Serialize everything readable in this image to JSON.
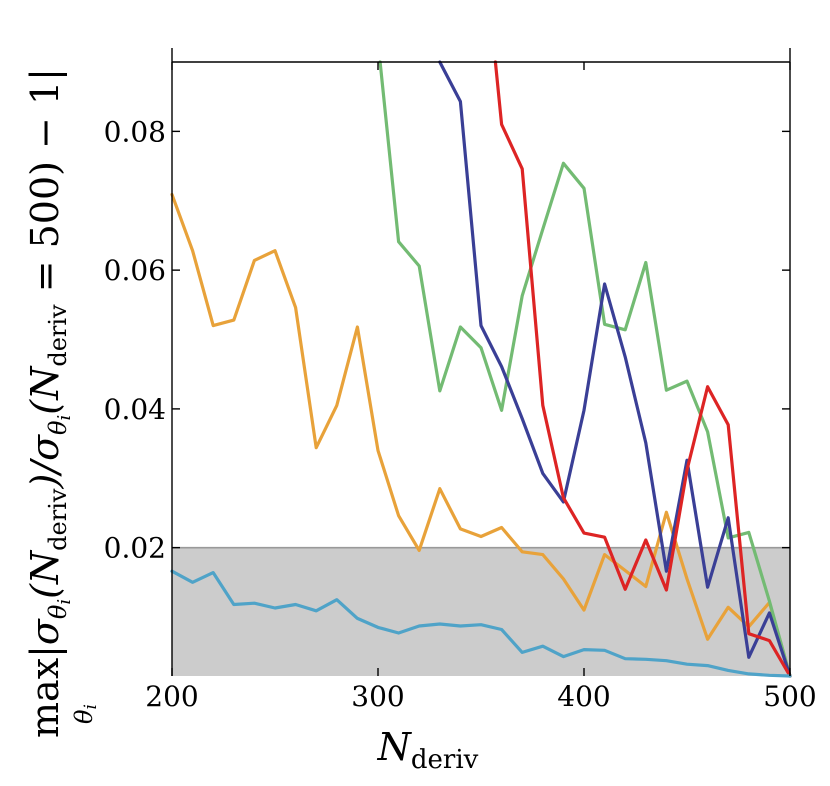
{
  "chart_data": {
    "type": "line",
    "title": "",
    "xlabel": "N",
    "xlabel_sub": "deriv",
    "ylabel": "max |σ_θi(N_deriv)/σ_θi(N_deriv = 500) − 1|",
    "ylabel_parts": {
      "max": "max",
      "under": "θ",
      "under_sub": "i",
      "body_a": "|σ",
      "theta": "θ",
      "theta_sub": "i",
      "paren_open": "(N",
      "deriv": "deriv",
      "mid": ")/σ",
      "tail": " = 500) − 1|"
    },
    "xlim": [
      200,
      500
    ],
    "ylim": [
      0.0015,
      0.09
    ],
    "xticks": [
      200,
      300,
      400,
      500
    ],
    "xtick_labels": [
      "200",
      "300",
      "400",
      "500"
    ],
    "yticks": [
      0.02,
      0.04,
      0.06,
      0.08
    ],
    "ytick_labels": [
      "0.02",
      "0.04",
      "0.06",
      "0.08"
    ],
    "shaded_region": {
      "y_from": 0.0015,
      "y_to": 0.02,
      "color": "#cccccc"
    },
    "threshold_line": {
      "y": 0.02,
      "color": "#999999"
    },
    "series": [
      {
        "name": "orange",
        "color": "#E8A23A",
        "x": [
          200,
          210,
          220,
          230,
          240,
          250,
          260,
          270,
          280,
          290,
          300,
          310,
          320,
          330,
          340,
          350,
          360,
          370,
          380,
          390,
          400,
          410,
          420,
          430,
          440,
          450,
          460,
          470,
          480,
          490,
          500
        ],
        "y": [
          0.0709,
          0.0628,
          0.052,
          0.0528,
          0.0614,
          0.0628,
          0.0546,
          0.0344,
          0.0405,
          0.0518,
          0.034,
          0.0246,
          0.0196,
          0.0285,
          0.0227,
          0.0216,
          0.0229,
          0.0194,
          0.019,
          0.0155,
          0.011,
          0.019,
          0.0167,
          0.0144,
          0.0251,
          0.0155,
          0.0068,
          0.0114,
          0.0086,
          0.0121,
          0.0015
        ]
      },
      {
        "name": "green",
        "color": "#73BB73",
        "x": [
          301,
          310,
          320,
          330,
          340,
          350,
          360,
          370,
          380,
          390,
          400,
          410,
          420,
          430,
          440,
          450,
          460,
          470,
          480,
          490,
          500
        ],
        "y": [
          0.09,
          0.0641,
          0.0606,
          0.0426,
          0.0518,
          0.0488,
          0.0398,
          0.0563,
          0.0659,
          0.0754,
          0.0718,
          0.0522,
          0.0514,
          0.0611,
          0.0427,
          0.044,
          0.0367,
          0.0214,
          0.0222,
          0.0123,
          0.0015
        ]
      },
      {
        "name": "blue",
        "color": "#3A3F96",
        "x": [
          330,
          340,
          350,
          360,
          370,
          380,
          390,
          400,
          410,
          420,
          430,
          440,
          450,
          460,
          470,
          480,
          490,
          500
        ],
        "y": [
          0.09,
          0.0843,
          0.052,
          0.0461,
          0.0386,
          0.0307,
          0.0266,
          0.0398,
          0.058,
          0.0475,
          0.0351,
          0.0166,
          0.0326,
          0.0143,
          0.0243,
          0.0042,
          0.0106,
          0.0015
        ]
      },
      {
        "name": "red",
        "color": "#DD2424",
        "x": [
          357,
          360,
          370,
          380,
          390,
          400,
          410,
          420,
          430,
          440,
          450,
          460,
          470,
          480,
          490,
          500
        ],
        "y": [
          0.09,
          0.081,
          0.0746,
          0.0405,
          0.0272,
          0.0221,
          0.0215,
          0.014,
          0.0211,
          0.0139,
          0.0312,
          0.0432,
          0.0377,
          0.0076,
          0.0066,
          0.0015
        ]
      },
      {
        "name": "teal",
        "color": "#4FA3C8",
        "x": [
          200,
          210,
          220,
          230,
          240,
          250,
          260,
          270,
          280,
          290,
          300,
          310,
          320,
          330,
          340,
          350,
          360,
          370,
          380,
          390,
          400,
          410,
          420,
          430,
          440,
          450,
          460,
          470,
          480,
          490,
          500
        ],
        "y": [
          0.0166,
          0.015,
          0.0164,
          0.0118,
          0.012,
          0.0113,
          0.0118,
          0.0109,
          0.0125,
          0.0098,
          0.0085,
          0.0077,
          0.0087,
          0.009,
          0.0087,
          0.0089,
          0.0082,
          0.0049,
          0.0058,
          0.0043,
          0.0053,
          0.0052,
          0.004,
          0.0039,
          0.0037,
          0.0032,
          0.003,
          0.0023,
          0.0018,
          0.0016,
          0.0015
        ]
      }
    ]
  }
}
